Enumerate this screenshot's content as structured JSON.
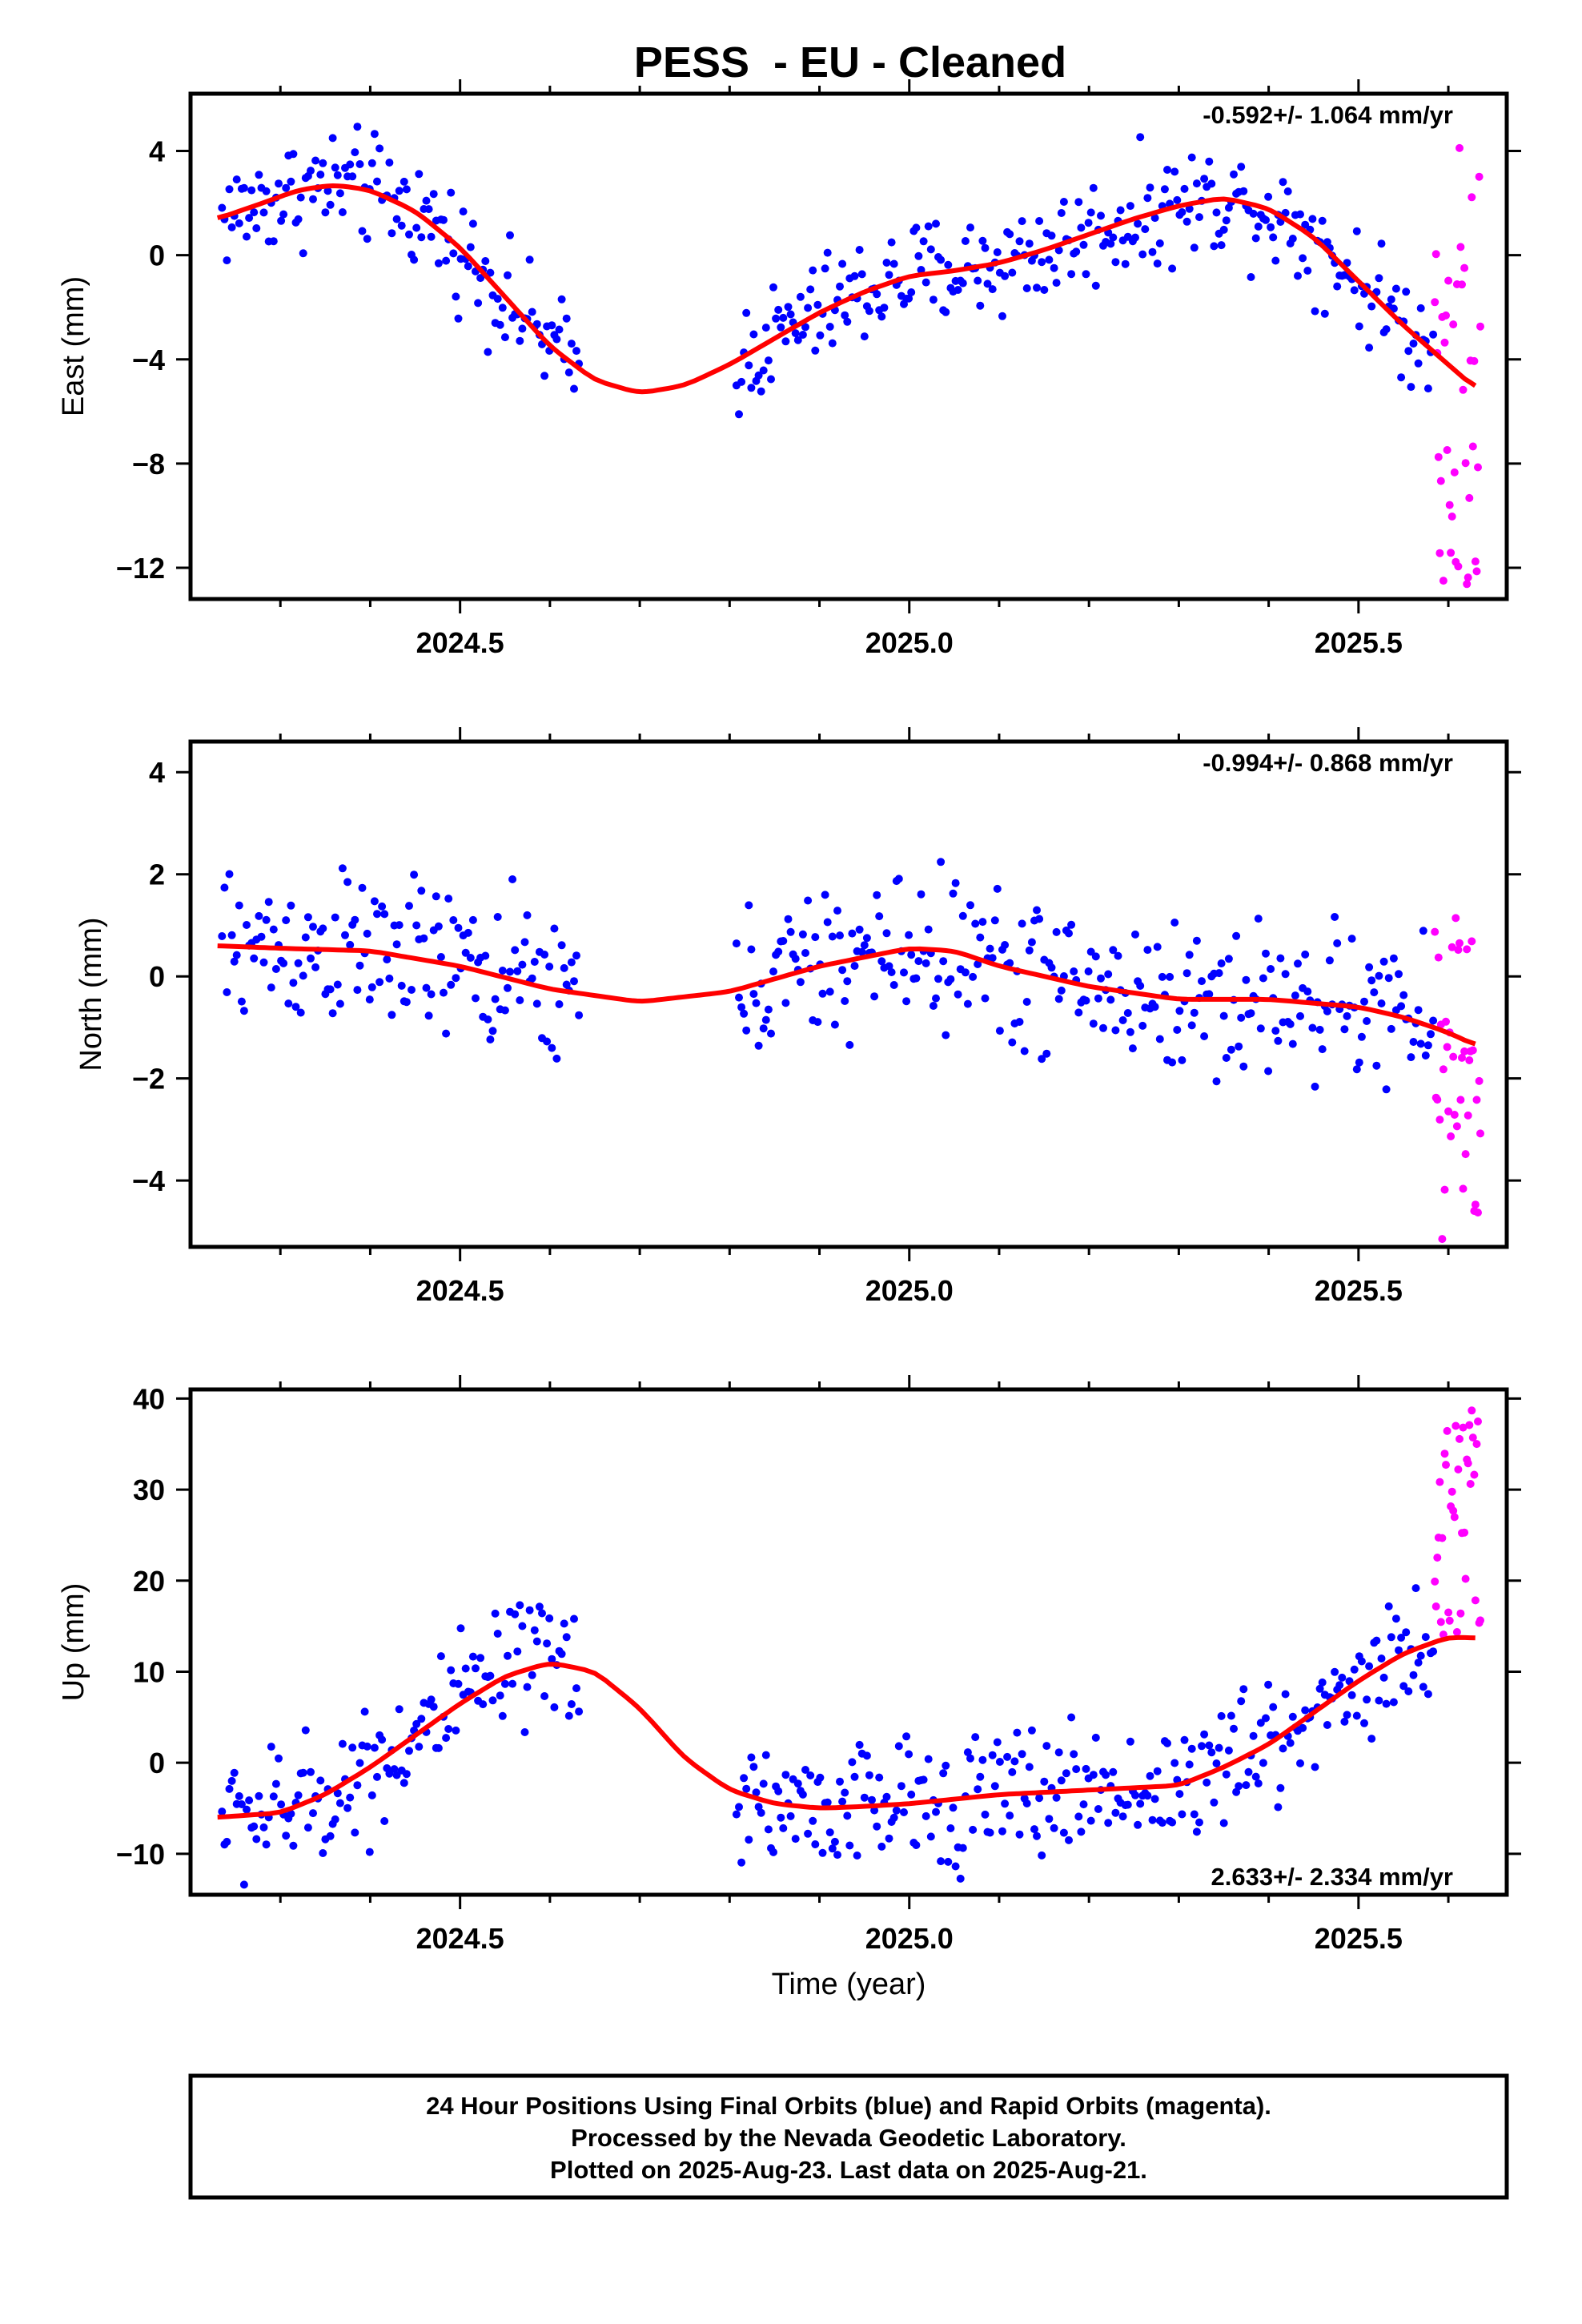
{
  "page": {
    "title": "PESS  - EU - Cleaned",
    "xlabel": "Time (year)"
  },
  "colors": {
    "final_orbits": "#0000ff",
    "rapid_orbits": "#ff00ff",
    "fit_line": "#ff0000",
    "frame": "#000000"
  },
  "chart_data": [
    {
      "type": "scatter",
      "panel": "east",
      "ylabel": "East (mm)",
      "rate_label": "-0.592+/- 1.064 mm/yr",
      "rate_placement": "top-right",
      "xlim": [
        2024.2,
        2025.665
      ],
      "ylim": [
        -13.2,
        6.2
      ],
      "xticks": [
        2024.5,
        2025.0,
        2025.5
      ],
      "xtick_labels": [
        "2024.5",
        "2025.0",
        "2025.5"
      ],
      "yticks": [
        4,
        0,
        -4,
        -8,
        -12
      ],
      "ytick_labels": [
        "4",
        "0",
        "−4",
        "−8",
        "−12"
      ],
      "grid": false,
      "fit": {
        "x": [
          2024.23,
          2024.28,
          2024.32,
          2024.36,
          2024.4,
          2024.45,
          2024.5,
          2024.55,
          2024.6,
          2024.65,
          2024.7,
          2024.75,
          2024.8,
          2024.85,
          2024.9,
          2024.95,
          2025.0,
          2025.05,
          2025.1,
          2025.15,
          2025.2,
          2025.25,
          2025.3,
          2025.35,
          2025.4,
          2025.45,
          2025.5,
          2025.55,
          2025.6,
          2025.63
        ],
        "y": [
          1.4,
          2.0,
          2.5,
          2.7,
          2.5,
          1.7,
          0.3,
          -1.6,
          -3.5,
          -4.8,
          -5.3,
          -5.0,
          -4.2,
          -3.2,
          -2.2,
          -1.4,
          -0.8,
          -0.6,
          -0.3,
          0.2,
          0.8,
          1.4,
          1.9,
          2.2,
          1.8,
          0.7,
          -1.0,
          -2.7,
          -4.2,
          -5.1
        ]
      }
    },
    {
      "type": "scatter",
      "panel": "north",
      "ylabel": "North (mm)",
      "rate_label": "-0.994+/- 0.868 mm/yr",
      "rate_placement": "top-right",
      "xlim": [
        2024.2,
        2025.665
      ],
      "ylim": [
        -5.3,
        4.6
      ],
      "xticks": [
        2024.5,
        2025.0,
        2025.5
      ],
      "xtick_labels": [
        "2024.5",
        "2025.0",
        "2025.5"
      ],
      "yticks": [
        4,
        2,
        0,
        -2,
        -4
      ],
      "ytick_labels": [
        "4",
        "2",
        "0",
        "−2",
        "−4"
      ],
      "grid": false,
      "fit": {
        "x": [
          2024.23,
          2024.3,
          2024.4,
          2024.5,
          2024.6,
          2024.7,
          2024.8,
          2024.9,
          2025.0,
          2025.05,
          2025.1,
          2025.2,
          2025.3,
          2025.4,
          2025.5,
          2025.55,
          2025.6,
          2025.63
        ],
        "y": [
          0.6,
          0.55,
          0.5,
          0.2,
          -0.25,
          -0.5,
          -0.3,
          0.2,
          0.55,
          0.5,
          0.2,
          -0.2,
          -0.45,
          -0.45,
          -0.6,
          -0.8,
          -1.1,
          -1.35
        ]
      }
    },
    {
      "type": "scatter",
      "panel": "up",
      "ylabel": "Up (mm)",
      "rate_label": "2.633+/- 2.334 mm/yr",
      "rate_placement": "bottom-right",
      "xlim": [
        2024.2,
        2025.665
      ],
      "ylim": [
        -14.5,
        41
      ],
      "xticks": [
        2024.5,
        2025.0,
        2025.5
      ],
      "xtick_labels": [
        "2024.5",
        "2025.0",
        "2025.5"
      ],
      "yticks": [
        40,
        30,
        20,
        10,
        0,
        -10
      ],
      "ytick_labels": [
        "40",
        "30",
        "20",
        "10",
        "0",
        "−10"
      ],
      "grid": false,
      "fit": {
        "x": [
          2024.23,
          2024.3,
          2024.35,
          2024.4,
          2024.45,
          2024.5,
          2024.55,
          2024.6,
          2024.65,
          2024.7,
          2024.75,
          2024.8,
          2024.85,
          2024.9,
          2024.95,
          2025.0,
          2025.1,
          2025.2,
          2025.3,
          2025.35,
          2025.4,
          2025.45,
          2025.5,
          2025.55,
          2025.6,
          2025.63
        ],
        "y": [
          -6,
          -5.5,
          -3.5,
          -0.5,
          3,
          6.5,
          9.5,
          11,
          10,
          6,
          0.5,
          -3,
          -4.5,
          -5,
          -4.8,
          -4.5,
          -3.5,
          -3,
          -2.5,
          -0.5,
          2,
          5.5,
          9,
          12,
          13.8,
          13.7
        ]
      }
    }
  ],
  "footer": {
    "line1": "24 Hour Positions Using Final Orbits (blue) and Rapid Orbits (magenta).",
    "line2": "Processed by the Nevada Geodetic Laboratory.",
    "line3": "Plotted on 2025-Aug-23. Last data on 2025-Aug-21."
  }
}
